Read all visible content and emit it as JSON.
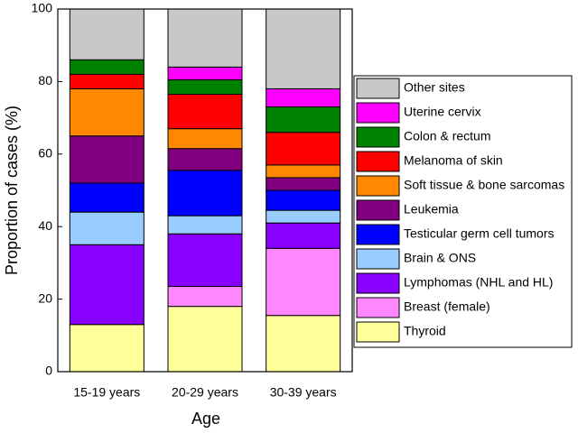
{
  "chart_data": {
    "type": "stacked-bar",
    "x_label": "Age",
    "y_label": "Proportion of cases (%)",
    "categories": [
      "15-19 years",
      "20-29 years",
      "30-39 years"
    ],
    "ylim": [
      0,
      100
    ],
    "yticks": [
      0,
      20,
      40,
      60,
      80,
      100
    ],
    "series": [
      {
        "name": "Thyroid",
        "color": "#ffff99",
        "values": [
          13,
          18,
          15.5
        ]
      },
      {
        "name": "Breast (female)",
        "color": "#ff88ff",
        "values": [
          0,
          5.5,
          18.5
        ]
      },
      {
        "name": "Lymphomas (NHL and HL)",
        "color": "#8800ff",
        "values": [
          22,
          14.5,
          7
        ]
      },
      {
        "name": "Brain & ONS",
        "color": "#99ccff",
        "values": [
          9,
          5,
          3.5
        ]
      },
      {
        "name": "Testicular germ cell tumors",
        "color": "#0000ff",
        "values": [
          8,
          12.5,
          5.5
        ]
      },
      {
        "name": "Leukemia",
        "color": "#800080",
        "values": [
          13,
          6,
          3.5
        ]
      },
      {
        "name": "Soft tissue & bone sarcomas",
        "color": "#ff8800",
        "values": [
          13,
          5.5,
          3.5
        ]
      },
      {
        "name": "Melanoma of skin",
        "color": "#ff0000",
        "values": [
          4,
          9.5,
          9
        ]
      },
      {
        "name": "Colon & rectum",
        "color": "#008000",
        "values": [
          4,
          4,
          7
        ]
      },
      {
        "name": "Uterine cervix",
        "color": "#ff00ff",
        "values": [
          0,
          3.5,
          5
        ]
      },
      {
        "name": "Other sites",
        "color": "#c8c8c8",
        "values": [
          14,
          16,
          22
        ]
      }
    ]
  }
}
